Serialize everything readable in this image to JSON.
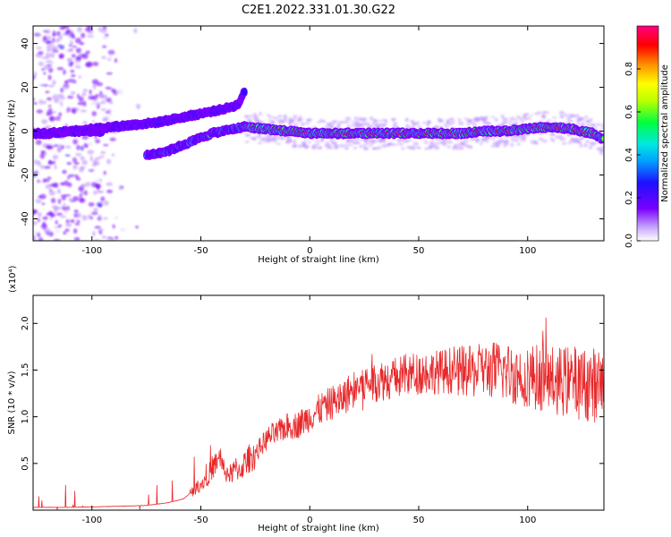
{
  "title": "C2E1.2022.331.01.30.G22",
  "colors": {
    "snr_line": "#e8282a",
    "frame": "#000000",
    "colormap": [
      "#e6d6ff",
      "#b98cff",
      "#7a00ff",
      "#1e10ff",
      "#00a0ff",
      "#00e8e0",
      "#00ff40",
      "#b8ff00",
      "#ffff00",
      "#ff9000",
      "#ff0000",
      "#ff0080"
    ]
  },
  "chart_data": [
    {
      "type": "heatmap",
      "title": "",
      "xlabel": "Height of straight line (km)",
      "ylabel": "Frequency (Hz)",
      "xlim": [
        -127,
        135
      ],
      "ylim": [
        -50,
        48
      ],
      "xticks": [
        -100,
        -50,
        0,
        50,
        100
      ],
      "xtick_labels": [
        "-100",
        "-50",
        "0",
        "50",
        "100"
      ],
      "yticks": [
        -40,
        -20,
        0,
        20,
        40
      ],
      "ytick_labels": [
        "-40",
        "-20",
        "0",
        "20",
        "40"
      ],
      "colorbar": {
        "label": "Normalized spectral amplitude",
        "range": [
          0,
          1
        ],
        "ticks": [
          0.0,
          0.2,
          0.4,
          0.6,
          0.8
        ],
        "tick_labels": [
          "0.0",
          "0.2",
          "0.4",
          "0.6",
          "0.8"
        ]
      },
      "ridges": [
        {
          "name": "upper branch",
          "x": [
            -110,
            -100,
            -90,
            -80,
            -70,
            -60,
            -50,
            -40,
            -33,
            -30
          ],
          "y": [
            0,
            1,
            2,
            3,
            4,
            6,
            8,
            10,
            12,
            18
          ],
          "amplitude": 0.45
        },
        {
          "name": "lower branch",
          "x": [
            -75,
            -70,
            -65,
            -60,
            -55,
            -50,
            -45,
            -40,
            -35,
            -30
          ],
          "y": [
            -11,
            -10,
            -9,
            -7,
            -5,
            -3,
            -1,
            0,
            1,
            2
          ],
          "amplitude": 0.55
        },
        {
          "name": "main carrier",
          "x": [
            -30,
            -20,
            -10,
            0,
            10,
            20,
            30,
            40,
            50,
            60,
            70,
            80,
            90,
            100,
            110,
            120,
            130,
            135
          ],
          "y": [
            2,
            1,
            0,
            -1,
            -1,
            -1,
            -1,
            -1,
            -1,
            -1,
            -1,
            0,
            0,
            1,
            2,
            1,
            -1,
            -4
          ],
          "amplitude": 0.9
        },
        {
          "name": "early weak carrier",
          "x": [
            -127,
            -120,
            -110,
            -100,
            -95
          ],
          "y": [
            -1,
            -1,
            0,
            0,
            0
          ],
          "amplitude": 0.4
        }
      ]
    },
    {
      "type": "line",
      "title": "",
      "xlabel": "Height of straight line (km)",
      "ylabel": "SNR (10 * v/v)",
      "scale_label": "(x10⁴)",
      "xlim": [
        -127,
        135
      ],
      "ylim": [
        0,
        2.3
      ],
      "xticks": [
        -100,
        -50,
        0,
        50,
        100
      ],
      "xtick_labels": [
        "-100",
        "-50",
        "0",
        "50",
        "100"
      ],
      "yticks": [
        0.5,
        1.0,
        1.5,
        2.0
      ],
      "ytick_labels": [
        "0.5",
        "1.0",
        "1.5",
        "2.0"
      ],
      "series": [
        {
          "x": [
            -127,
            -110,
            -90,
            -75,
            -65,
            -58,
            -54,
            -50,
            -47,
            -45,
            -43,
            -41,
            -40,
            -38,
            -36,
            -34,
            -32,
            -30,
            -28,
            -25,
            -22,
            -20,
            -18,
            -15,
            -12,
            -10,
            -8,
            -5,
            -2,
            0,
            3,
            6,
            10,
            15,
            20,
            25,
            30,
            35,
            40,
            45,
            50,
            55,
            60,
            65,
            70,
            75,
            80,
            85,
            90,
            95,
            100,
            105,
            110,
            115,
            120,
            125,
            130,
            135
          ],
          "y": [
            0.03,
            0.03,
            0.04,
            0.05,
            0.08,
            0.12,
            0.2,
            0.28,
            0.35,
            0.45,
            0.5,
            0.55,
            0.45,
            0.4,
            0.38,
            0.45,
            0.42,
            0.5,
            0.55,
            0.6,
            0.7,
            0.75,
            0.8,
            0.82,
            0.88,
            0.9,
            0.9,
            0.92,
            0.97,
            1.0,
            1.05,
            1.1,
            1.15,
            1.2,
            1.3,
            1.35,
            1.38,
            1.4,
            1.42,
            1.45,
            1.47,
            1.48,
            1.48,
            1.5,
            1.48,
            1.48,
            1.5,
            1.5,
            1.48,
            1.45,
            1.45,
            1.42,
            1.4,
            1.38,
            1.38,
            1.35,
            1.35,
            1.3
          ]
        }
      ]
    }
  ]
}
